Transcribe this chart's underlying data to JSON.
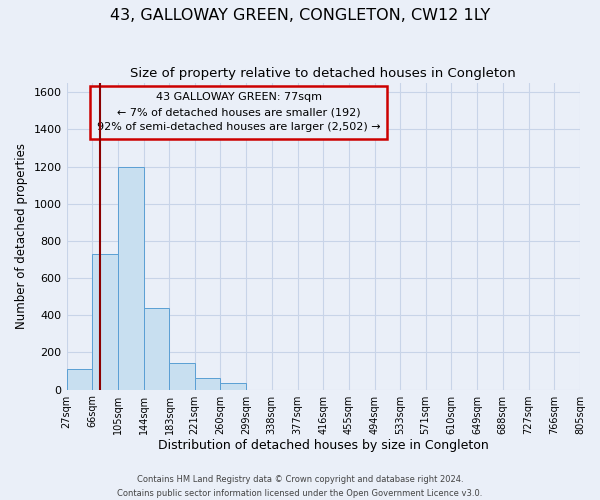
{
  "title": "43, GALLOWAY GREEN, CONGLETON, CW12 1LY",
  "subtitle": "Size of property relative to detached houses in Congleton",
  "xlabel": "Distribution of detached houses by size in Congleton",
  "ylabel": "Number of detached properties",
  "footer_line1": "Contains HM Land Registry data © Crown copyright and database right 2024.",
  "footer_line2": "Contains public sector information licensed under the Open Government Licence v3.0.",
  "bin_edges": [
    27,
    66,
    105,
    144,
    183,
    221,
    260,
    299,
    338,
    377,
    416,
    455,
    494,
    533,
    571,
    610,
    649,
    688,
    727,
    766,
    805
  ],
  "bar_heights": [
    110,
    730,
    1200,
    440,
    145,
    60,
    35,
    0,
    0,
    0,
    0,
    0,
    0,
    0,
    0,
    0,
    0,
    0,
    0,
    0
  ],
  "bar_color": "#c8dff0",
  "bar_edge_color": "#5a9fd4",
  "property_value": 77,
  "property_label": "43 GALLOWAY GREEN: 77sqm",
  "annotation_line1": "← 7% of detached houses are smaller (192)",
  "annotation_line2": "92% of semi-detached houses are larger (2,502) →",
  "vline_color": "#8b0000",
  "annotation_box_edge_color": "#cc0000",
  "ylim": [
    0,
    1650
  ],
  "yticks": [
    0,
    200,
    400,
    600,
    800,
    1000,
    1200,
    1400,
    1600
  ],
  "grid_color": "#c8d4e8",
  "background_color": "#eaeff8",
  "title_fontsize": 11.5,
  "subtitle_fontsize": 9.5,
  "tick_label_fontsize": 7,
  "ylabel_fontsize": 8.5,
  "xlabel_fontsize": 9,
  "footer_fontsize": 6,
  "annotation_fontsize": 8
}
